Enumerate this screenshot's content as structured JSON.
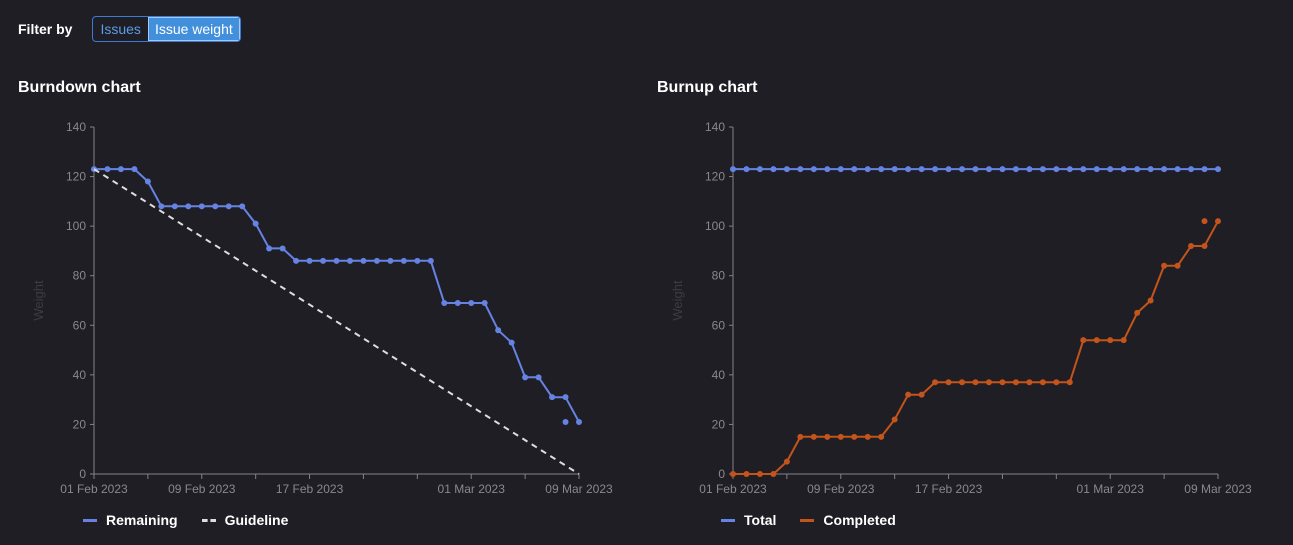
{
  "filter": {
    "label": "Filter by",
    "options": [
      "Issues",
      "Issue weight"
    ],
    "selected": "Issue weight"
  },
  "colors": {
    "remaining": "#6683e3",
    "guideline": "#dedede",
    "total": "#6683e3",
    "completed": "#c4541b",
    "axis": "#838383",
    "tick_text": "#89888d",
    "axis_title": "#3d3c42"
  },
  "chart_data": [
    {
      "type": "line",
      "title": "Burndown chart",
      "ylabel": "Weight",
      "xlabel": "",
      "ylim": [
        0,
        140
      ],
      "yticks": [
        0,
        20,
        40,
        60,
        80,
        100,
        120,
        140
      ],
      "xlim": [
        "2023-02-01",
        "2023-03-09"
      ],
      "xticks": [
        {
          "date": "2023-02-01",
          "label": "01 Feb 2023"
        },
        {
          "date": "2023-02-09",
          "label": "09 Feb 2023"
        },
        {
          "date": "2023-02-17",
          "label": "17 Feb 2023"
        },
        {
          "date": "2023-03-01",
          "label": "01 Mar 2023"
        },
        {
          "date": "2023-03-09",
          "label": "09 Mar 2023"
        }
      ],
      "minor_ticks": [
        "2023-02-05",
        "2023-02-13",
        "2023-02-21",
        "2023-02-25",
        "2023-03-05"
      ],
      "legend_position": "bottom-left",
      "series": [
        {
          "name": "Remaining",
          "style": "solid-markers",
          "x": [
            "2023-02-01",
            "2023-02-02",
            "2023-02-03",
            "2023-02-04",
            "2023-02-05",
            "2023-02-06",
            "2023-02-07",
            "2023-02-08",
            "2023-02-09",
            "2023-02-10",
            "2023-02-11",
            "2023-02-12",
            "2023-02-13",
            "2023-02-14",
            "2023-02-15",
            "2023-02-16",
            "2023-02-17",
            "2023-02-18",
            "2023-02-19",
            "2023-02-20",
            "2023-02-21",
            "2023-02-22",
            "2023-02-23",
            "2023-02-24",
            "2023-02-25",
            "2023-02-26",
            "2023-02-27",
            "2023-02-28",
            "2023-03-01",
            "2023-03-02",
            "2023-03-03",
            "2023-03-04",
            "2023-03-05",
            "2023-03-06",
            "2023-03-07",
            "2023-03-08",
            "2023-03-09"
          ],
          "values": [
            123,
            123,
            123,
            123,
            118,
            108,
            108,
            108,
            108,
            108,
            108,
            108,
            101,
            91,
            91,
            86,
            86,
            86,
            86,
            86,
            86,
            86,
            86,
            86,
            86,
            86,
            69,
            69,
            69,
            69,
            58,
            53,
            39,
            39,
            31,
            31,
            21
          ],
          "extra_points": [
            {
              "x": "2023-03-08",
              "y": 21
            }
          ]
        },
        {
          "name": "Guideline",
          "style": "dashed",
          "x": [
            "2023-02-01",
            "2023-03-09"
          ],
          "values": [
            123,
            0
          ]
        }
      ]
    },
    {
      "type": "line",
      "title": "Burnup chart",
      "ylabel": "Weight",
      "xlabel": "",
      "ylim": [
        0,
        140
      ],
      "yticks": [
        0,
        20,
        40,
        60,
        80,
        100,
        120,
        140
      ],
      "xlim": [
        "2023-02-01",
        "2023-03-09"
      ],
      "xticks": [
        {
          "date": "2023-02-01",
          "label": "01 Feb 2023"
        },
        {
          "date": "2023-02-09",
          "label": "09 Feb 2023"
        },
        {
          "date": "2023-02-17",
          "label": "17 Feb 2023"
        },
        {
          "date": "2023-03-01",
          "label": "01 Mar 2023"
        },
        {
          "date": "2023-03-09",
          "label": "09 Mar 2023"
        }
      ],
      "minor_ticks": [
        "2023-02-05",
        "2023-02-13",
        "2023-02-21",
        "2023-02-25",
        "2023-03-05"
      ],
      "legend_position": "bottom-left",
      "series": [
        {
          "name": "Total",
          "style": "solid-markers",
          "x": [
            "2023-02-01",
            "2023-02-02",
            "2023-02-03",
            "2023-02-04",
            "2023-02-05",
            "2023-02-06",
            "2023-02-07",
            "2023-02-08",
            "2023-02-09",
            "2023-02-10",
            "2023-02-11",
            "2023-02-12",
            "2023-02-13",
            "2023-02-14",
            "2023-02-15",
            "2023-02-16",
            "2023-02-17",
            "2023-02-18",
            "2023-02-19",
            "2023-02-20",
            "2023-02-21",
            "2023-02-22",
            "2023-02-23",
            "2023-02-24",
            "2023-02-25",
            "2023-02-26",
            "2023-02-27",
            "2023-02-28",
            "2023-03-01",
            "2023-03-02",
            "2023-03-03",
            "2023-03-04",
            "2023-03-05",
            "2023-03-06",
            "2023-03-07",
            "2023-03-08",
            "2023-03-09"
          ],
          "values": [
            123,
            123,
            123,
            123,
            123,
            123,
            123,
            123,
            123,
            123,
            123,
            123,
            123,
            123,
            123,
            123,
            123,
            123,
            123,
            123,
            123,
            123,
            123,
            123,
            123,
            123,
            123,
            123,
            123,
            123,
            123,
            123,
            123,
            123,
            123,
            123,
            123
          ]
        },
        {
          "name": "Completed",
          "style": "solid-markers",
          "x": [
            "2023-02-01",
            "2023-02-02",
            "2023-02-03",
            "2023-02-04",
            "2023-02-05",
            "2023-02-06",
            "2023-02-07",
            "2023-02-08",
            "2023-02-09",
            "2023-02-10",
            "2023-02-11",
            "2023-02-12",
            "2023-02-13",
            "2023-02-14",
            "2023-02-15",
            "2023-02-16",
            "2023-02-17",
            "2023-02-18",
            "2023-02-19",
            "2023-02-20",
            "2023-02-21",
            "2023-02-22",
            "2023-02-23",
            "2023-02-24",
            "2023-02-25",
            "2023-02-26",
            "2023-02-27",
            "2023-02-28",
            "2023-03-01",
            "2023-03-02",
            "2023-03-03",
            "2023-03-04",
            "2023-03-05",
            "2023-03-06",
            "2023-03-07",
            "2023-03-08",
            "2023-03-09"
          ],
          "values": [
            0,
            0,
            0,
            0,
            5,
            15,
            15,
            15,
            15,
            15,
            15,
            15,
            22,
            32,
            32,
            37,
            37,
            37,
            37,
            37,
            37,
            37,
            37,
            37,
            37,
            37,
            54,
            54,
            54,
            54,
            65,
            70,
            84,
            84,
            92,
            92,
            102
          ],
          "extra_points": [
            {
              "x": "2023-03-08",
              "y": 102
            }
          ]
        }
      ]
    }
  ]
}
